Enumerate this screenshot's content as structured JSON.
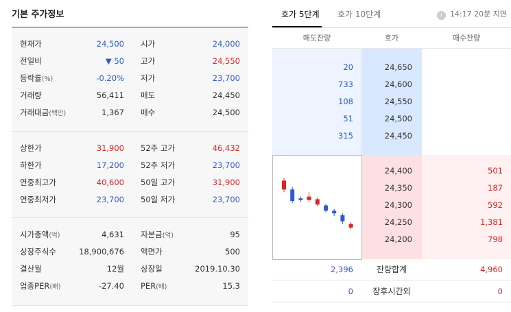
{
  "basic": {
    "title": "기본 주가정보",
    "section1": [
      {
        "l1": "현재가",
        "v1": "24,500",
        "c1": "blue",
        "l2": "시가",
        "v2": "24,000",
        "c2": "blue"
      },
      {
        "l1": "전일비",
        "v1": "▼ 50",
        "c1": "blue",
        "l2": "고가",
        "v2": "24,550",
        "c2": "red"
      },
      {
        "l1": "등락률",
        "l1s": "(%)",
        "v1": "-0.20%",
        "c1": "blue",
        "l2": "저가",
        "v2": "23,700",
        "c2": "blue"
      },
      {
        "l1": "거래량",
        "v1": "56,411",
        "c1": "dark",
        "l2": "매도",
        "v2": "24,450",
        "c2": "dark"
      },
      {
        "l1": "거래대금",
        "l1s": "(백만)",
        "v1": "1,367",
        "c1": "dark",
        "l2": "매수",
        "v2": "24,500",
        "c2": "dark"
      }
    ],
    "section2": [
      {
        "l1": "상한가",
        "v1": "31,900",
        "c1": "red",
        "l2": "52주 고가",
        "v2": "46,432",
        "c2": "red"
      },
      {
        "l1": "하한가",
        "v1": "17,200",
        "c1": "blue",
        "l2": "52주 저가",
        "v2": "23,700",
        "c2": "blue"
      },
      {
        "l1": "연중최고가",
        "v1": "40,600",
        "c1": "red",
        "l2": "50일 고가",
        "v2": "31,900",
        "c2": "red"
      },
      {
        "l1": "연중최저가",
        "v1": "23,700",
        "c1": "blue",
        "l2": "50일 저가",
        "v2": "23,700",
        "c2": "blue"
      }
    ],
    "section3": [
      {
        "l1": "시가총액",
        "l1s": "(억)",
        "v1": "4,631",
        "c1": "dark",
        "l2": "자본금",
        "l2s": "(억)",
        "v2": "95",
        "c2": "dark"
      },
      {
        "l1": "상장주식수",
        "v1": "18,900,676",
        "c1": "dark",
        "l2": "액면가",
        "v2": "500",
        "c2": "dark"
      },
      {
        "l1": "결산월",
        "v1": "12월",
        "c1": "dark",
        "l2": "상장일",
        "v2": "2019.10.30",
        "c2": "dark"
      },
      {
        "l1": "업종PER",
        "l1s": "(배)",
        "v1": "-27.40",
        "c1": "dark",
        "l2": "PER",
        "l2s": "(배)",
        "v2": "15.3",
        "c2": "dark"
      }
    ]
  },
  "orderbook": {
    "tabs": [
      "호가 5단계",
      "호가 10단계"
    ],
    "info_icon": "info-icon",
    "info_text": "14:17 20분 지연",
    "headers": [
      "매도잔량",
      "호가",
      "매수잔량"
    ],
    "asks": [
      {
        "vol": "20",
        "price": "24,650"
      },
      {
        "vol": "733",
        "price": "24,600"
      },
      {
        "vol": "108",
        "price": "24,550"
      },
      {
        "vol": "51",
        "price": "24,500"
      },
      {
        "vol": "315",
        "price": "24,450"
      }
    ],
    "bids": [
      {
        "price": "24,400",
        "vol": "501"
      },
      {
        "price": "24,350",
        "vol": "187"
      },
      {
        "price": "24,300",
        "vol": "592"
      },
      {
        "price": "24,250",
        "vol": "1,381"
      },
      {
        "price": "24,200",
        "vol": "798"
      }
    ],
    "summary": [
      {
        "left": "2,396",
        "label": "잔량합계",
        "right": "4,960"
      },
      {
        "left": "0",
        "label": "장후시간외",
        "right": "0"
      }
    ],
    "candles": [
      {
        "o": 24650,
        "c": 24550,
        "h": 24680,
        "l": 24520,
        "color": "red"
      },
      {
        "o": 24550,
        "c": 24420,
        "h": 24580,
        "l": 24400,
        "color": "blue"
      },
      {
        "o": 24430,
        "c": 24450,
        "h": 24470,
        "l": 24410,
        "color": "blue"
      },
      {
        "o": 24470,
        "c": 24430,
        "h": 24520,
        "l": 24410,
        "color": "red"
      },
      {
        "o": 24440,
        "c": 24380,
        "h": 24460,
        "l": 24360,
        "color": "red"
      },
      {
        "o": 24370,
        "c": 24310,
        "h": 24390,
        "l": 24290,
        "color": "blue"
      },
      {
        "o": 24310,
        "c": 24280,
        "h": 24330,
        "l": 24250,
        "color": "blue"
      },
      {
        "o": 24260,
        "c": 24190,
        "h": 24280,
        "l": 24160,
        "color": "blue"
      },
      {
        "o": 24160,
        "c": 24120,
        "h": 24180,
        "l": 24100,
        "color": "red"
      }
    ]
  }
}
